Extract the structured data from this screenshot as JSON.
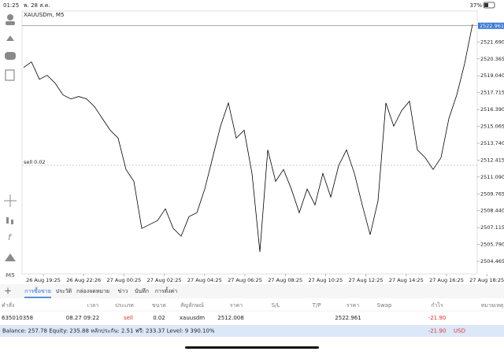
{
  "status_bar": {
    "time": "01:25",
    "date": "พ. 28 ส.ค.",
    "battery": "37%"
  },
  "chart": {
    "type": "line",
    "symbol": "XAUUSDm, M5",
    "color": "#000000",
    "ylim": [
      2503.48,
      2524.12
    ],
    "yticks": [
      2504.465,
      {
        "value": 2505.79,
        "label": "2505.790"
      },
      2507.115,
      {
        "value": 2508.44,
        "label": "2508.440"
      },
      2509.765,
      {
        "value": 2511.09,
        "label": "2511.090"
      },
      2512.415,
      {
        "value": 2513.74,
        "label": "2513.740"
      },
      2515.065,
      {
        "value": 2516.39,
        "label": "2516.390"
      },
      2517.715,
      {
        "value": 2519.04,
        "label": "2519.040"
      },
      2520.365,
      {
        "value": 2521.69,
        "label": "2521.690"
      }
    ],
    "x_labels": [
      "26 Aug 19:25",
      "26 Aug 22:26",
      "27 Aug 00:25",
      "27 Aug 02:25",
      "27 Aug 04:25",
      "27 Aug 06:25",
      "27 Aug 08:25",
      "27 Aug 10:25",
      "27 Aug 12:25",
      "27 Aug 14:25",
      "27 Aug 16:25",
      "27 Aug 18:25"
    ],
    "values": [
      2519.69,
      2520.12,
      2518.76,
      2519.07,
      2518.46,
      2517.53,
      2517.22,
      2517.41,
      2517.22,
      2516.61,
      2515.68,
      2514.76,
      2514.14,
      2511.68,
      2510.75,
      2507.05,
      2507.36,
      2507.67,
      2508.59,
      2507.05,
      2506.44,
      2507.98,
      2508.29,
      2510.14,
      2512.6,
      2515.07,
      2516.91,
      2514.14,
      2514.76,
      2511.37,
      2505.21,
      2513.22,
      2510.75,
      2511.68,
      2510.14,
      2508.29,
      2510.14,
      2508.9,
      2511.37,
      2509.52,
      2511.98,
      2513.22,
      2511.37,
      2508.9,
      2506.56,
      2509.21,
      2516.91,
      2515.07,
      2516.3,
      2517.04,
      2513.22,
      2512.6,
      2511.68,
      2512.6,
      2515.68,
      2517.53,
      2519.99,
      2523.08
    ],
    "current_price": 2522.961,
    "sell_line": {
      "label": "sell 0.02",
      "price": 2512.008
    }
  },
  "tabs": [
    "การซื้อขาย",
    "ประวัติ",
    "กล่องจดหมาย",
    "ข่าว",
    "บันทึก",
    "การตั้งค่า"
  ],
  "active_tab": 0,
  "table": {
    "headers": [
      "คำสั่ง",
      "เวลา",
      "ประเภท",
      "ขนาด",
      "สัญลักษณ์",
      "ราคา",
      "S/L",
      "T/P",
      "ราคา",
      "Swap",
      "กำไร",
      "หมายเหตุ"
    ],
    "row": {
      "order": "635010358",
      "time": "08.27 09:22",
      "type": "sell",
      "size": "0.02",
      "symbol": "xauusdm",
      "open_price": "2512.008",
      "price": "2522.961",
      "profit": "-21.90"
    }
  },
  "footer": {
    "summary": "Balance: 257.78 Equity: 235.88 หลักประกัน: 2.51 ฟรี: 233.37 Level: 9 390.10%",
    "profit": "-21.90",
    "currency": "USD"
  }
}
